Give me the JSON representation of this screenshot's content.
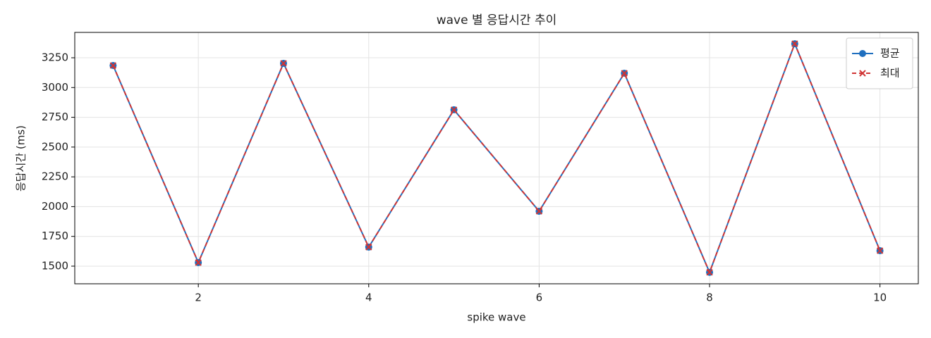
{
  "chart_data": {
    "type": "line",
    "title": "wave 별 응답시간 추이",
    "x_label": "spike wave",
    "y_label": "응답시간 (ms)",
    "x": [
      1,
      2,
      3,
      4,
      5,
      6,
      7,
      8,
      9,
      10
    ],
    "series": [
      {
        "name": "평균",
        "color": "#1f6fbf",
        "marker": "o",
        "dash": "solid",
        "values": [
          3185,
          1530,
          3203,
          1660,
          2813,
          1961,
          3120,
          1448,
          3368,
          1630
        ]
      },
      {
        "name": "최대",
        "color": "#d03535",
        "marker": "x",
        "dash": "dashed",
        "values": [
          3185,
          1530,
          3203,
          1660,
          2813,
          1961,
          3120,
          1448,
          3368,
          1630
        ]
      }
    ],
    "xlim": [
      0.55,
      10.45
    ],
    "ylim": [
      1352,
      3463
    ],
    "xticks": [
      2,
      4,
      6,
      8,
      10
    ],
    "yticks": [
      1500,
      1750,
      2000,
      2250,
      2500,
      2750,
      3000,
      3250
    ],
    "grid": true,
    "legend": "upper right"
  }
}
